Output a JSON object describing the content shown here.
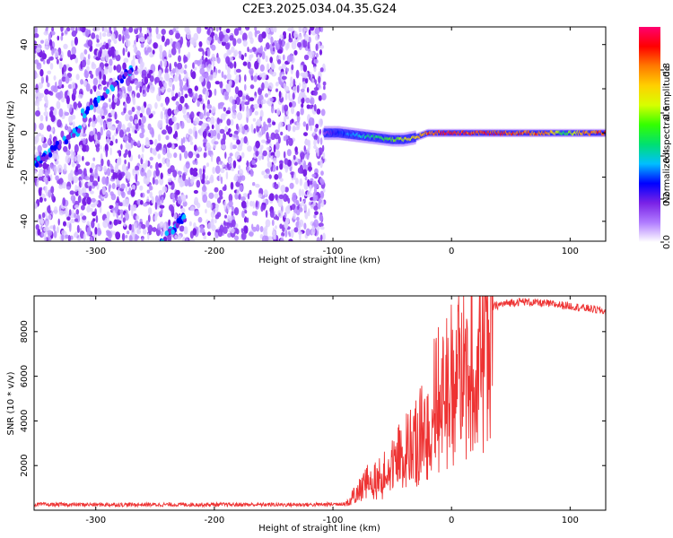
{
  "title": "C2E3.2025.034.04.35.G24",
  "chart_data": [
    {
      "type": "heatmap",
      "xlabel": "Height of straight line (km)",
      "ylabel": "Frequency (Hz)",
      "xlim": [
        -352,
        130
      ],
      "ylim": [
        -49,
        48
      ],
      "xticks": [
        -300,
        -200,
        -100,
        0,
        100
      ],
      "yticks": [
        -40,
        -20,
        0,
        20,
        40
      ],
      "noise_region_x": [
        -352,
        -107
      ],
      "noise_region_color": "#7a22e6",
      "diagonal_traces": [
        {
          "x": [
            -352,
            -312
          ],
          "y": [
            -14,
            2
          ]
        },
        {
          "x": [
            -312,
            -268
          ],
          "y": [
            8,
            30
          ]
        },
        {
          "x": [
            -245,
            -225
          ],
          "y": [
            -49,
            -38
          ]
        }
      ],
      "signal_trace": {
        "x": [
          -107,
          -95,
          -80,
          -65,
          -50,
          -40,
          -30,
          -20,
          -10,
          0,
          20,
          40,
          60,
          80,
          95,
          110,
          130
        ],
        "y": [
          0,
          0,
          -1,
          -2,
          -3,
          -3,
          -2,
          0,
          0,
          0,
          0,
          0,
          0,
          0,
          0,
          0,
          0
        ],
        "amp": [
          0.15,
          0.3,
          0.4,
          0.5,
          0.6,
          0.7,
          0.75,
          0.9,
          0.95,
          1.0,
          0.95,
          0.95,
          0.9,
          0.9,
          0.5,
          0.85,
          0.95
        ]
      },
      "colorbar": {
        "label": "Normalized spectral amplitude",
        "ticks": [
          0.0,
          0.2,
          0.4,
          0.6,
          0.8
        ],
        "range": [
          0,
          1
        ],
        "stops": [
          "#ffffff",
          "#b07cff",
          "#7a22e6",
          "#0000ff",
          "#00bfff",
          "#00e070",
          "#33ff00",
          "#d7ff00",
          "#ffd000",
          "#ff7a00",
          "#ff0000",
          "#ff0070"
        ]
      }
    },
    {
      "type": "line",
      "xlabel": "Height of straight line (km)",
      "ylabel": "SNR (10 * v/v)",
      "xlim": [
        -352,
        130
      ],
      "ylim": [
        0,
        9600
      ],
      "xticks": [
        -300,
        -200,
        -100,
        0,
        100
      ],
      "yticks": [
        2000,
        4000,
        6000,
        8000
      ],
      "line_color": "#ee3333",
      "series": [
        {
          "x": [
            -352,
            -300,
            -200,
            -110,
            -90,
            -85,
            -80,
            -75,
            -70,
            -65,
            -60,
            -55,
            -50,
            -45,
            -40,
            -35,
            -30,
            -25,
            -20,
            -15,
            -10,
            -5,
            0,
            5,
            10,
            15,
            20,
            25,
            30,
            35,
            40,
            50,
            60,
            80,
            100,
            120,
            130
          ],
          "values": [
            250,
            250,
            250,
            250,
            300,
            500,
            800,
            1100,
            1400,
            1500,
            1500,
            1800,
            2200,
            2600,
            2700,
            3000,
            3200,
            3700,
            4300,
            5000,
            5400,
            5800,
            6300,
            6700,
            7000,
            7400,
            7800,
            8300,
            8800,
            9100,
            9200,
            9300,
            9350,
            9250,
            9150,
            9000,
            8900
          ]
        }
      ]
    }
  ]
}
